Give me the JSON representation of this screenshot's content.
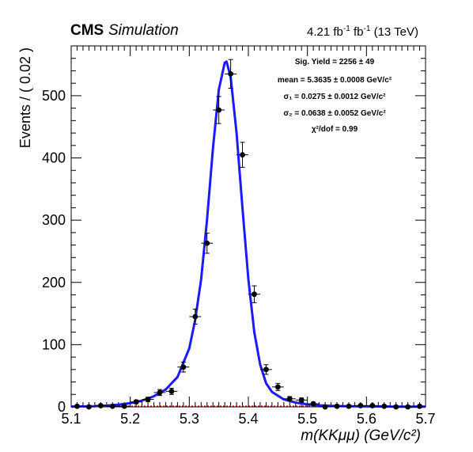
{
  "header": {
    "experiment": "CMS",
    "label": "Simulation",
    "lumi_value": "4.21 fb",
    "lumi_mid": " fb",
    "lumi_tail": " (13 TeV)",
    "lumi_exp": "-1"
  },
  "chart_data": {
    "type": "scatter",
    "title": "",
    "xlabel": "m(KKμμ) (GeV/c²)",
    "ylabel": "Events / ( 0.02 )",
    "xlim": [
      5.1,
      5.7
    ],
    "ylim": [
      0,
      580
    ],
    "xticks": [
      5.1,
      5.2,
      5.3,
      5.4,
      5.5,
      5.6,
      5.7
    ],
    "xtick_labels": [
      "5.1",
      "5.2",
      "5.3",
      "5.4",
      "5.5",
      "5.6",
      "5.7"
    ],
    "yticks": [
      0,
      100,
      200,
      300,
      400,
      500
    ],
    "ytick_labels": [
      "0",
      "100",
      "200",
      "300",
      "400",
      "500"
    ],
    "bin_width": 0.02,
    "grid": false,
    "colors": {
      "fit": "#1a1aff",
      "points": "#000000",
      "background_fit": "#cc0000"
    },
    "series": [
      {
        "name": "data",
        "x": [
          5.11,
          5.13,
          5.15,
          5.17,
          5.19,
          5.21,
          5.23,
          5.25,
          5.27,
          5.29,
          5.31,
          5.33,
          5.35,
          5.37,
          5.39,
          5.41,
          5.43,
          5.45,
          5.47,
          5.49,
          5.51,
          5.53,
          5.55,
          5.57,
          5.59,
          5.61,
          5.63,
          5.65,
          5.67,
          5.69
        ],
        "y": [
          1,
          0,
          2,
          1,
          1,
          8,
          12,
          23,
          25,
          64,
          145,
          263,
          477,
          535,
          405,
          181,
          60,
          32,
          13,
          11,
          5,
          0,
          1,
          1,
          2,
          2,
          1,
          0,
          0,
          1
        ],
        "yerr": [
          1,
          0,
          1.4,
          1,
          1,
          2.8,
          3.5,
          4.8,
          5,
          8,
          12,
          16.2,
          21.8,
          23.1,
          20.1,
          13.5,
          7.7,
          5.7,
          3.6,
          3.3,
          2.2,
          0,
          1,
          1,
          1.4,
          1.4,
          1,
          0,
          0,
          1
        ]
      },
      {
        "name": "fit",
        "x": [
          5.1,
          5.12,
          5.14,
          5.16,
          5.18,
          5.2,
          5.22,
          5.24,
          5.26,
          5.28,
          5.3,
          5.31,
          5.32,
          5.33,
          5.34,
          5.35,
          5.36,
          5.363,
          5.37,
          5.38,
          5.39,
          5.4,
          5.41,
          5.42,
          5.43,
          5.44,
          5.46,
          5.48,
          5.5,
          5.52,
          5.54,
          5.56,
          5.58,
          5.6,
          5.62,
          5.64,
          5.66,
          5.68,
          5.7
        ],
        "y": [
          0.5,
          0.8,
          1.2,
          2,
          3.5,
          6,
          10,
          17,
          28,
          48,
          94,
          140,
          205,
          300,
          415,
          510,
          553,
          555,
          530,
          440,
          320,
          205,
          120,
          68,
          38,
          24,
          12,
          7,
          4,
          2.5,
          1.7,
          1.2,
          0.9,
          0.7,
          0.6,
          0.5,
          0.4,
          0.35,
          0.3
        ]
      }
    ],
    "annotations": [
      "Sig. Yield  = 2256  ± 49",
      "mean  = 5.3635  ± 0.0008 GeV/c²",
      "σ₁ = 0.0275  ± 0.0012 GeV/c²",
      "σ₂ = 0.0638  ± 0.0052 GeV/c²",
      "χ²/dof = 0.99"
    ]
  }
}
